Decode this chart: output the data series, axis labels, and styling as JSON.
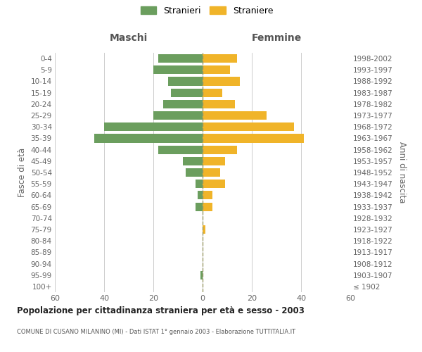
{
  "age_groups": [
    "0-4",
    "5-9",
    "10-14",
    "15-19",
    "20-24",
    "25-29",
    "30-34",
    "35-39",
    "40-44",
    "45-49",
    "50-54",
    "55-59",
    "60-64",
    "65-69",
    "70-74",
    "75-79",
    "80-84",
    "85-89",
    "90-94",
    "95-99",
    "100+"
  ],
  "birth_years": [
    "1998-2002",
    "1993-1997",
    "1988-1992",
    "1983-1987",
    "1978-1982",
    "1973-1977",
    "1968-1972",
    "1963-1967",
    "1958-1962",
    "1953-1957",
    "1948-1952",
    "1943-1947",
    "1938-1942",
    "1933-1937",
    "1928-1932",
    "1923-1927",
    "1918-1922",
    "1913-1917",
    "1908-1912",
    "1903-1907",
    "≤ 1902"
  ],
  "maschi": [
    18,
    20,
    14,
    13,
    16,
    20,
    40,
    44,
    18,
    8,
    7,
    3,
    2,
    3,
    0,
    0,
    0,
    0,
    0,
    1,
    0
  ],
  "femmine": [
    14,
    11,
    15,
    8,
    13,
    26,
    37,
    41,
    14,
    9,
    7,
    9,
    4,
    4,
    0,
    1,
    0,
    0,
    0,
    0,
    0
  ],
  "color_maschi": "#6b9e5e",
  "color_femmine": "#f0b429",
  "title": "Popolazione per cittadinanza straniera per età e sesso - 2003",
  "subtitle": "COMUNE DI CUSANO MILANINO (MI) - Dati ISTAT 1° gennaio 2003 - Elaborazione TUTTITALIA.IT",
  "label_maschi": "Maschi",
  "label_femmine": "Femmine",
  "ylabel_left": "Fasce di età",
  "ylabel_right": "Anni di nascita",
  "legend_stranieri": "Stranieri",
  "legend_straniere": "Straniere",
  "xlim": 60,
  "background_color": "#ffffff",
  "grid_color": "#cccccc"
}
